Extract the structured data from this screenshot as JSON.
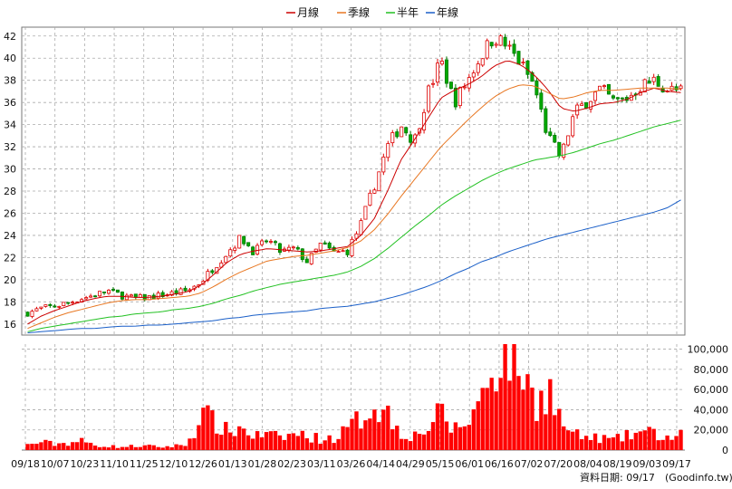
{
  "chart_data": [
    {
      "type": "candlestick",
      "legend": [
        {
          "label": "月線",
          "color": "#cc0000"
        },
        {
          "label": "季線",
          "color": "#e87722"
        },
        {
          "label": "半年",
          "color": "#22c122"
        },
        {
          "label": "年線",
          "color": "#1a5fc8"
        }
      ],
      "ylim": [
        15,
        42.8
      ],
      "yticks": [
        16,
        18,
        20,
        22,
        24,
        26,
        28,
        30,
        32,
        34,
        36,
        38,
        40,
        42
      ],
      "grid": true,
      "legend_position": "top-center",
      "x_labels": [
        "09/18",
        "10/07",
        "10/23",
        "11/10",
        "11/25",
        "12/10",
        "12/26",
        "01/13",
        "01/28",
        "02/23",
        "03/11",
        "03/26",
        "04/14",
        "04/29",
        "05/15",
        "06/01",
        "06/16",
        "07/02",
        "07/20",
        "08/04",
        "08/19",
        "09/03",
        "09/17"
      ],
      "close_path": [
        17.0,
        17.4,
        17.6,
        17.9,
        18.3,
        18.6,
        19.0,
        18.6,
        18.3,
        18.4,
        18.6,
        18.8,
        19.0,
        19.8,
        21.2,
        22.5,
        23.8,
        22.5,
        23.6,
        22.5,
        22.8,
        21.6,
        23.2,
        22.4,
        22.6,
        25.0,
        28.5,
        32.0,
        34.0,
        32.5,
        36.8,
        39.8,
        36.0,
        38.0,
        40.2,
        42.0,
        41.0,
        39.5,
        37.5,
        33.0,
        31.0,
        35.0,
        36.2,
        37.2,
        36.0,
        36.4,
        37.5,
        38.0,
        37.2,
        37.0
      ],
      "ma_month": [
        16.0,
        16.7,
        17.2,
        17.6,
        18.0,
        18.3,
        18.5,
        18.5,
        18.4,
        18.4,
        18.5,
        18.7,
        18.9,
        19.5,
        20.5,
        21.6,
        22.3,
        22.6,
        22.8,
        22.7,
        22.6,
        22.5,
        22.6,
        22.8,
        23.0,
        24.0,
        25.5,
        28.0,
        30.8,
        32.6,
        34.5,
        36.4,
        37.1,
        37.6,
        38.3,
        39.3,
        39.8,
        39.4,
        38.5,
        37.2,
        35.5,
        35.2,
        35.5,
        35.9,
        36.0,
        36.3,
        36.9,
        37.3,
        37.0,
        36.9
      ],
      "ma_quarter": [
        15.6,
        16.1,
        16.6,
        17.0,
        17.3,
        17.6,
        17.9,
        18.1,
        18.2,
        18.2,
        18.3,
        18.4,
        18.5,
        18.8,
        19.4,
        20.1,
        20.7,
        21.2,
        21.7,
        21.9,
        22.1,
        22.2,
        22.4,
        22.6,
        22.9,
        23.5,
        24.5,
        25.9,
        27.5,
        29.0,
        30.5,
        32.0,
        33.2,
        34.4,
        35.5,
        36.5,
        37.2,
        37.6,
        37.5,
        36.9,
        36.3,
        36.5,
        36.9,
        37.1,
        37.1,
        37.2,
        37.3,
        37.3,
        37.3,
        37.2
      ],
      "ma_half": [
        15.3,
        15.6,
        15.8,
        16.0,
        16.2,
        16.4,
        16.6,
        16.7,
        16.9,
        17.0,
        17.1,
        17.3,
        17.4,
        17.6,
        17.9,
        18.3,
        18.6,
        19.0,
        19.3,
        19.6,
        19.8,
        20.0,
        20.2,
        20.4,
        20.7,
        21.2,
        21.9,
        22.8,
        23.8,
        24.8,
        25.7,
        26.7,
        27.5,
        28.2,
        28.9,
        29.5,
        30.0,
        30.4,
        30.8,
        31.0,
        31.2,
        31.5,
        31.9,
        32.3,
        32.6,
        33.0,
        33.4,
        33.8,
        34.1,
        34.4
      ],
      "ma_year": [
        15.2,
        15.3,
        15.4,
        15.5,
        15.6,
        15.6,
        15.7,
        15.8,
        15.8,
        15.9,
        15.9,
        16.0,
        16.1,
        16.2,
        16.3,
        16.5,
        16.6,
        16.8,
        16.9,
        17.0,
        17.1,
        17.2,
        17.4,
        17.5,
        17.6,
        17.8,
        18.0,
        18.3,
        18.6,
        19.0,
        19.4,
        19.9,
        20.5,
        21.0,
        21.6,
        22.0,
        22.5,
        22.9,
        23.3,
        23.7,
        24.0,
        24.3,
        24.6,
        24.9,
        25.2,
        25.5,
        25.8,
        26.1,
        26.5,
        27.2
      ]
    },
    {
      "type": "bar",
      "ylim": [
        0,
        105000
      ],
      "yticks": [
        0,
        20000,
        40000,
        60000,
        80000,
        100000
      ],
      "ytick_labels": [
        "0",
        "20,000",
        "40,000",
        "60,000",
        "80,000",
        "100,000"
      ],
      "color": "#ff0000",
      "volume_path": [
        5000,
        8000,
        6000,
        7000,
        9000,
        5000,
        4000,
        3000,
        4000,
        4000,
        3000,
        4000,
        6000,
        35000,
        28000,
        18000,
        22000,
        14000,
        15000,
        12000,
        16000,
        14000,
        11000,
        12000,
        20000,
        32000,
        48000,
        36000,
        18000,
        14000,
        22000,
        36000,
        20000,
        28000,
        50000,
        88000,
        108000,
        85000,
        45000,
        65000,
        28000,
        15000,
        12000,
        12000,
        10000,
        14000,
        18000,
        16000,
        12000,
        14000
      ]
    }
  ],
  "footer": {
    "text": "資料日期: 09/17",
    "source": "(Goodinfo.tw)"
  }
}
